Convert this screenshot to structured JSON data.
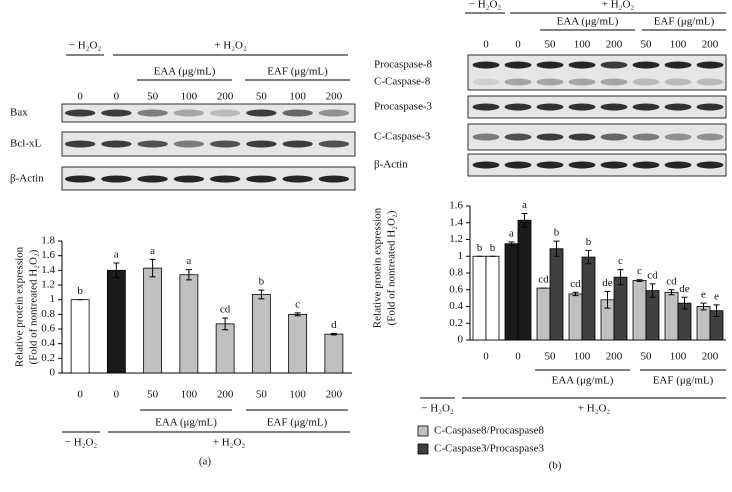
{
  "chart_data": [
    {
      "type": "bar",
      "panel_label": "(a)",
      "y_label": [
        "Relative protein expression",
        "(Fold of nontreated H₂O₂)"
      ],
      "categories": [
        "0",
        "0",
        "50",
        "100",
        "200",
        "50",
        "100",
        "200"
      ],
      "values": [
        1,
        1.4,
        1.43,
        1.34,
        0.67,
        1.07,
        0.8,
        0.53
      ],
      "errors": [
        0,
        0.1,
        0.12,
        0.07,
        0.08,
        0.06,
        0.02,
        0.01
      ],
      "letters": [
        "b",
        "a",
        "a",
        "a",
        "cd",
        "b",
        "c",
        "d"
      ],
      "colors": [
        "#ffffff",
        "#1a1a1a",
        "#c0c0c0",
        "#c0c0c0",
        "#c0c0c0",
        "#c0c0c0",
        "#c0c0c0",
        "#c0c0c0"
      ],
      "ylim": [
        0,
        1.8
      ],
      "yticks": [
        0,
        0.2,
        0.4,
        0.6,
        0.8,
        1,
        1.2,
        1.4,
        1.6,
        1.8
      ],
      "groups": {
        "minus": "− H₂O₂",
        "plus": "+ H₂O₂",
        "eaa": "EAA (μg/mL)",
        "eaf": "EAF (μg/mL)"
      },
      "blot_rows": [
        "Bax",
        "Bcl-xL",
        "β-Actin"
      ]
    },
    {
      "type": "bar",
      "panel_label": "(b)",
      "y_label": [
        "Relative protein expression",
        "(Fold of nontreated H₂O₂)"
      ],
      "categories": [
        "0",
        "0",
        "50",
        "100",
        "200",
        "50",
        "100",
        "200"
      ],
      "series": [
        {
          "name": "C-Caspase8/Procaspase8",
          "color": "#c0c0c0",
          "colors": [
            "#ffffff",
            "#1a1a1a",
            "#c0c0c0",
            "#c0c0c0",
            "#c0c0c0",
            "#c0c0c0",
            "#c0c0c0",
            "#c0c0c0"
          ],
          "values": [
            1,
            1.15,
            0.62,
            0.55,
            0.48,
            0.71,
            0.57,
            0.4
          ],
          "errors": [
            0,
            0.02,
            0,
            0.02,
            0.1,
            0.01,
            0.03,
            0.04
          ],
          "letters": [
            "b",
            "a",
            "cd",
            "cd",
            "de",
            "c",
            "cd",
            "e"
          ]
        },
        {
          "name": "C-Caspase3/Procaspase3",
          "color": "#404040",
          "colors": [
            "#ffffff",
            "#1a1a1a",
            "#404040",
            "#404040",
            "#404040",
            "#404040",
            "#404040",
            "#404040"
          ],
          "values": [
            1,
            1.43,
            1.09,
            0.99,
            0.75,
            0.59,
            0.44,
            0.35
          ],
          "errors": [
            0,
            0.08,
            0.09,
            0.08,
            0.09,
            0.08,
            0.07,
            0.07
          ],
          "letters": [
            "b",
            "a",
            "b",
            "b",
            "c",
            "cd",
            "de",
            "e"
          ]
        }
      ],
      "ylim": [
        0,
        1.6
      ],
      "yticks": [
        0,
        0.2,
        0.4,
        0.6,
        0.8,
        1,
        1.2,
        1.4,
        1.6
      ],
      "groups": {
        "minus": "− H₂O₂",
        "plus": "+ H₂O₂",
        "eaa": "EAA (μg/mL)",
        "eaf": "EAF (μg/mL)"
      },
      "blot_rows": [
        "Procaspase-8",
        "C-Caspase-8",
        "Procaspase-3",
        "C-Caspase-3",
        "β-Actin"
      ]
    }
  ]
}
